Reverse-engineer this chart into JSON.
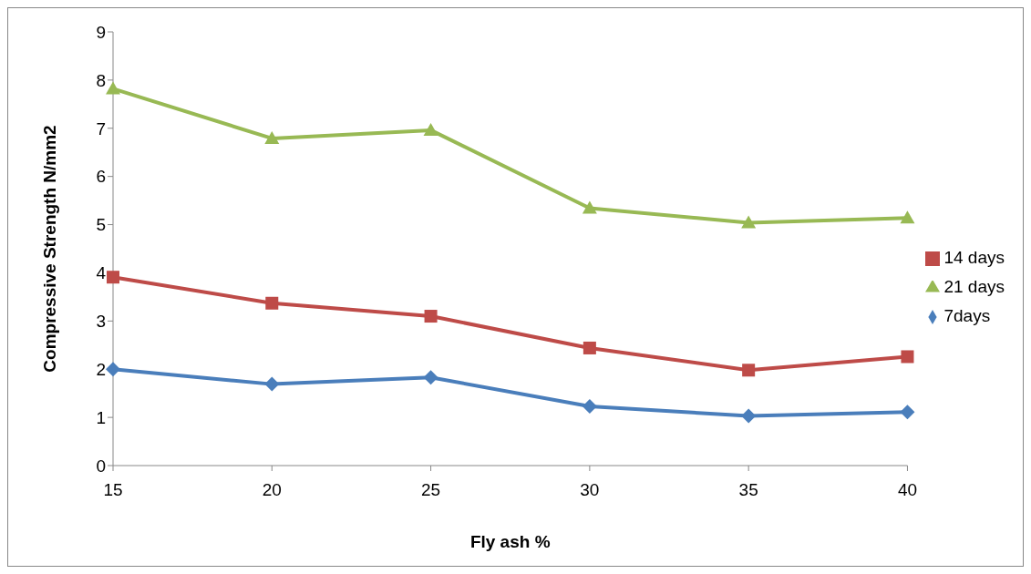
{
  "chart_data": {
    "type": "line",
    "xlabel": "Fly ash %",
    "ylabel": "Compressive Strength N/mm2",
    "categories": [
      "15",
      "20",
      "25",
      "30",
      "35",
      "40"
    ],
    "series": [
      {
        "name": "7days",
        "color": "#4a7ebb",
        "marker": "diamond",
        "values": [
          2.0,
          1.69,
          1.83,
          1.23,
          1.03,
          1.11
        ]
      },
      {
        "name": "14 days",
        "color": "#be4b48",
        "marker": "square",
        "values": [
          3.91,
          3.37,
          3.1,
          2.44,
          1.98,
          2.26
        ]
      },
      {
        "name": "21 days",
        "color": "#98b954",
        "marker": "triangle",
        "values": [
          7.82,
          6.79,
          6.96,
          5.34,
          5.04,
          5.14
        ]
      }
    ],
    "ylim": [
      0,
      9
    ],
    "yticks": [
      0,
      1,
      2,
      3,
      4,
      5,
      6,
      7,
      8,
      9
    ],
    "grid": false,
    "legend": "right",
    "line_style": "solid"
  }
}
